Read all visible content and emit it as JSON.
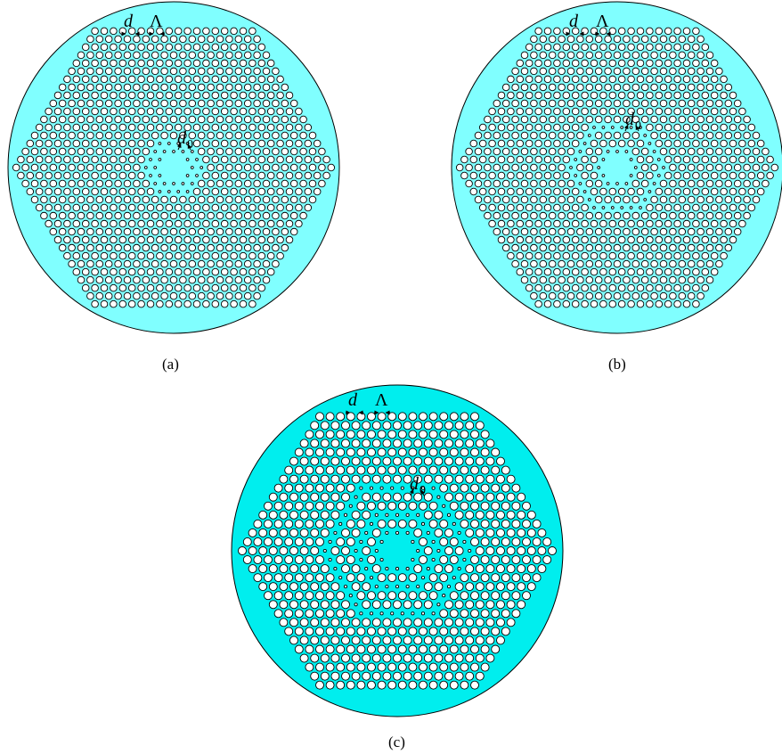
{
  "colors": {
    "cladding_a": "#80ffff",
    "cladding_b": "#80ffff",
    "cladding_c": "#00eeee",
    "outline": "#000000",
    "hole_fill": "#ffffff"
  },
  "panels": [
    {
      "id": "a",
      "caption": "(a)",
      "labels": {
        "hole_diameter": "d",
        "pitch": "Λ",
        "defect_diameter": "d",
        "defect_subscript": "0"
      }
    },
    {
      "id": "b",
      "caption": "(b)",
      "labels": {
        "hole_diameter": "d",
        "pitch": "Λ",
        "defect_diameter": "d",
        "defect_subscript": "0"
      }
    },
    {
      "id": "c",
      "caption": "(c)",
      "labels": {
        "hole_diameter": "d",
        "pitch": "Λ",
        "defect_diameter": "d",
        "defect_subscript": "0"
      }
    }
  ]
}
